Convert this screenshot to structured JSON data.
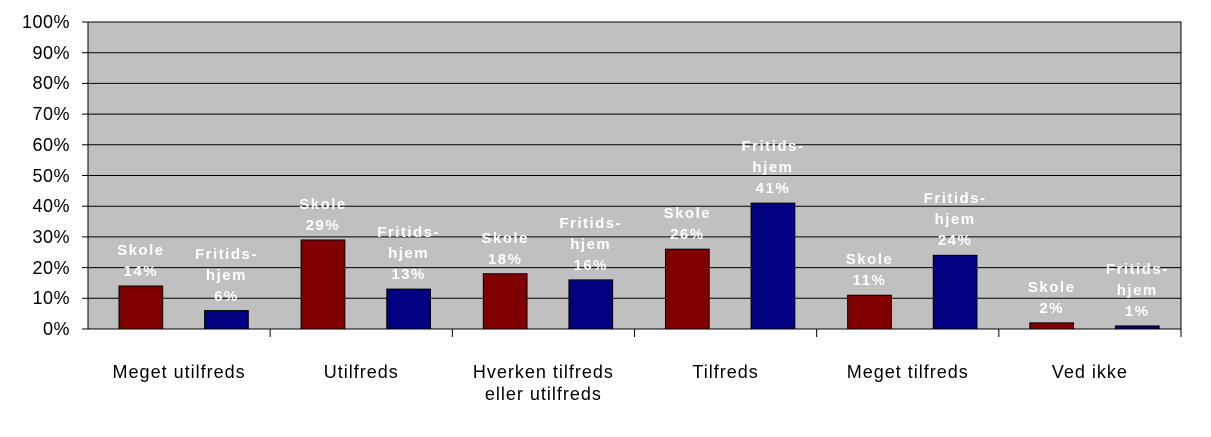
{
  "chart_data": {
    "type": "bar",
    "categories": [
      "Meget utilfreds",
      "Utilfreds",
      "Hverken tilfreds eller utilfreds",
      "Tilfreds",
      "Meget tilfreds",
      "Ved ikke"
    ],
    "series": [
      {
        "name": "Skole",
        "color": "#800000",
        "values": [
          14,
          29,
          18,
          26,
          11,
          2
        ],
        "value_labels": [
          "14%",
          "29%",
          "18%",
          "26%",
          "11%",
          "2%"
        ]
      },
      {
        "name": "Fritids-hjem",
        "color": "#000080",
        "values": [
          6,
          13,
          16,
          41,
          24,
          1
        ],
        "value_labels": [
          "6%",
          "13%",
          "16%",
          "41%",
          "24%",
          "1%"
        ]
      }
    ],
    "ylim": [
      0,
      100
    ],
    "yticks": [
      {
        "value": 0,
        "label": "0%"
      },
      {
        "value": 10,
        "label": "10%"
      },
      {
        "value": 20,
        "label": "20%"
      },
      {
        "value": 30,
        "label": "30%"
      },
      {
        "value": 40,
        "label": "40%"
      },
      {
        "value": 50,
        "label": "50%"
      },
      {
        "value": 60,
        "label": "60%"
      },
      {
        "value": 70,
        "label": "70%"
      },
      {
        "value": 80,
        "label": "80%"
      },
      {
        "value": 90,
        "label": "90%"
      },
      {
        "value": 100,
        "label": "100%"
      }
    ],
    "grid": true,
    "background": "#c0c0c0"
  }
}
